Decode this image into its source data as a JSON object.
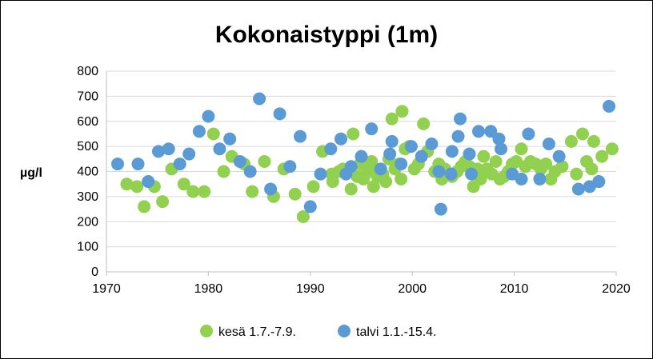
{
  "chart_data": {
    "type": "scatter",
    "title": "Kokonaistyppi (1m)",
    "xlabel": "",
    "ylabel": "µg/l",
    "xlim": [
      1970,
      2020
    ],
    "ylim": [
      0,
      800
    ],
    "xticks": [
      1970,
      1980,
      1990,
      2000,
      2010,
      2020
    ],
    "yticks": [
      0,
      100,
      200,
      300,
      400,
      500,
      600,
      700,
      800
    ],
    "grid": true,
    "legend_position": "bottom",
    "series": [
      {
        "name": "kesä 1.7.-7.9.",
        "color": "#92d050",
        "points": [
          [
            1972.0,
            350
          ],
          [
            1973.0,
            340
          ],
          [
            1973.7,
            260
          ],
          [
            1974.7,
            340
          ],
          [
            1975.5,
            280
          ],
          [
            1976.4,
            410
          ],
          [
            1977.6,
            350
          ],
          [
            1978.5,
            320
          ],
          [
            1979.6,
            320
          ],
          [
            1980.5,
            550
          ],
          [
            1981.5,
            400
          ],
          [
            1982.3,
            460
          ],
          [
            1983.5,
            430
          ],
          [
            1984.3,
            320
          ],
          [
            1985.5,
            440
          ],
          [
            1986.4,
            300
          ],
          [
            1987.4,
            410
          ],
          [
            1988.5,
            310
          ],
          [
            1989.3,
            220
          ],
          [
            1990.3,
            340
          ],
          [
            1991.2,
            480
          ],
          [
            1992.1,
            390
          ],
          [
            1992.2,
            360
          ],
          [
            1992.8,
            400
          ],
          [
            1993.2,
            410
          ],
          [
            1994.0,
            330
          ],
          [
            1994.2,
            550
          ],
          [
            1994.6,
            380
          ],
          [
            1994.9,
            430
          ],
          [
            1995.2,
            370
          ],
          [
            1995.5,
            410
          ],
          [
            1995.8,
            400
          ],
          [
            1996.0,
            440
          ],
          [
            1996.2,
            340
          ],
          [
            1996.6,
            380
          ],
          [
            1997.1,
            390
          ],
          [
            1997.4,
            360
          ],
          [
            1997.7,
            450
          ],
          [
            1998.0,
            610
          ],
          [
            1998.3,
            410
          ],
          [
            1998.7,
            430
          ],
          [
            1998.9,
            370
          ],
          [
            1999.0,
            640
          ],
          [
            1999.3,
            490
          ],
          [
            1999.7,
            500
          ],
          [
            2000.2,
            410
          ],
          [
            2000.6,
            430
          ],
          [
            2001.1,
            590
          ],
          [
            2001.5,
            480
          ],
          [
            2002.2,
            400
          ],
          [
            2002.6,
            430
          ],
          [
            2002.9,
            370
          ],
          [
            2003.2,
            410
          ],
          [
            2003.9,
            380
          ],
          [
            2004.4,
            400
          ],
          [
            2004.8,
            420
          ],
          [
            2005.2,
            440
          ],
          [
            2005.6,
            420
          ],
          [
            2006.0,
            340
          ],
          [
            2006.4,
            410
          ],
          [
            2006.7,
            370
          ],
          [
            2007.0,
            460
          ],
          [
            2007.3,
            410
          ],
          [
            2007.8,
            390
          ],
          [
            2008.2,
            440
          ],
          [
            2008.6,
            370
          ],
          [
            2009.0,
            380
          ],
          [
            2009.4,
            400
          ],
          [
            2009.8,
            430
          ],
          [
            2010.2,
            440
          ],
          [
            2010.7,
            490
          ],
          [
            2011.1,
            420
          ],
          [
            2011.6,
            440
          ],
          [
            2012.1,
            430
          ],
          [
            2012.6,
            410
          ],
          [
            2013.1,
            430
          ],
          [
            2013.6,
            370
          ],
          [
            2014.0,
            400
          ],
          [
            2014.7,
            420
          ],
          [
            2015.6,
            520
          ],
          [
            2016.1,
            390
          ],
          [
            2016.7,
            550
          ],
          [
            2017.1,
            440
          ],
          [
            2017.6,
            410
          ],
          [
            2017.8,
            520
          ],
          [
            2018.6,
            460
          ],
          [
            2019.6,
            490
          ]
        ]
      },
      {
        "name": "talvi 1.1.-15.4.",
        "color": "#5b9bd5",
        "points": [
          [
            1971.1,
            430
          ],
          [
            1973.1,
            430
          ],
          [
            1974.1,
            360
          ],
          [
            1975.1,
            480
          ],
          [
            1976.1,
            490
          ],
          [
            1977.2,
            430
          ],
          [
            1978.1,
            470
          ],
          [
            1979.1,
            560
          ],
          [
            1980.0,
            620
          ],
          [
            1981.1,
            490
          ],
          [
            1982.1,
            530
          ],
          [
            1983.1,
            440
          ],
          [
            1984.1,
            400
          ],
          [
            1985.0,
            690
          ],
          [
            1986.1,
            330
          ],
          [
            1987.0,
            630
          ],
          [
            1988.0,
            420
          ],
          [
            1989.0,
            540
          ],
          [
            1990.0,
            260
          ],
          [
            1991.0,
            390
          ],
          [
            1992.0,
            490
          ],
          [
            1993.0,
            530
          ],
          [
            1993.5,
            390
          ],
          [
            1994.0,
            420
          ],
          [
            1995.0,
            460
          ],
          [
            1996.0,
            570
          ],
          [
            1996.9,
            410
          ],
          [
            1997.8,
            470
          ],
          [
            1998.0,
            520
          ],
          [
            1998.9,
            430
          ],
          [
            1999.9,
            500
          ],
          [
            2000.9,
            460
          ],
          [
            2001.9,
            510
          ],
          [
            2002.6,
            400
          ],
          [
            2002.8,
            250
          ],
          [
            2003.8,
            390
          ],
          [
            2003.9,
            480
          ],
          [
            2004.7,
            610
          ],
          [
            2004.5,
            540
          ],
          [
            2005.6,
            470
          ],
          [
            2005.8,
            390
          ],
          [
            2006.5,
            560
          ],
          [
            2007.7,
            560
          ],
          [
            2008.5,
            530
          ],
          [
            2008.7,
            490
          ],
          [
            2009.8,
            390
          ],
          [
            2010.7,
            370
          ],
          [
            2011.4,
            550
          ],
          [
            2012.5,
            370
          ],
          [
            2013.4,
            510
          ],
          [
            2014.4,
            460
          ],
          [
            2016.3,
            330
          ],
          [
            2017.4,
            340
          ],
          [
            2018.3,
            360
          ],
          [
            2019.3,
            660
          ]
        ]
      }
    ]
  }
}
